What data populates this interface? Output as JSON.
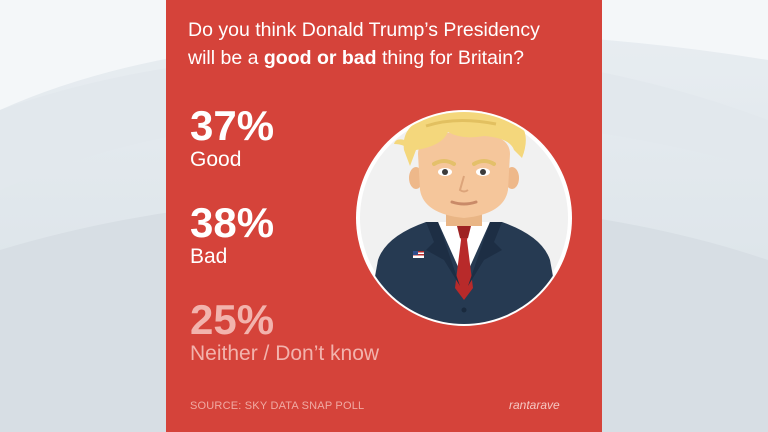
{
  "question": {
    "part1": "Do you think Donald Trump’s Presidency",
    "part2": "will be a ",
    "emphasis": "good or bad",
    "part3": " thing for Britain?"
  },
  "chart_data": {
    "type": "table",
    "categories": [
      "Good",
      "Bad",
      "Neither / Don’t know"
    ],
    "values": [
      37,
      38,
      25
    ],
    "value_labels": [
      "37%",
      "38%",
      "25%"
    ],
    "unit": "%"
  },
  "source": "SOURCE: SKY DATA SNAP POLL",
  "logo_text": "rantarave",
  "colors": {
    "card": "#d5433a",
    "text": "#ffffff",
    "muted_text": "#f2b3ad",
    "suit": "#263a52",
    "tie": "#b82a2a",
    "hair": "#f4d77c",
    "skin": "#f5c69b"
  },
  "illustration": "cartoon-portrait-suit-red-tie"
}
